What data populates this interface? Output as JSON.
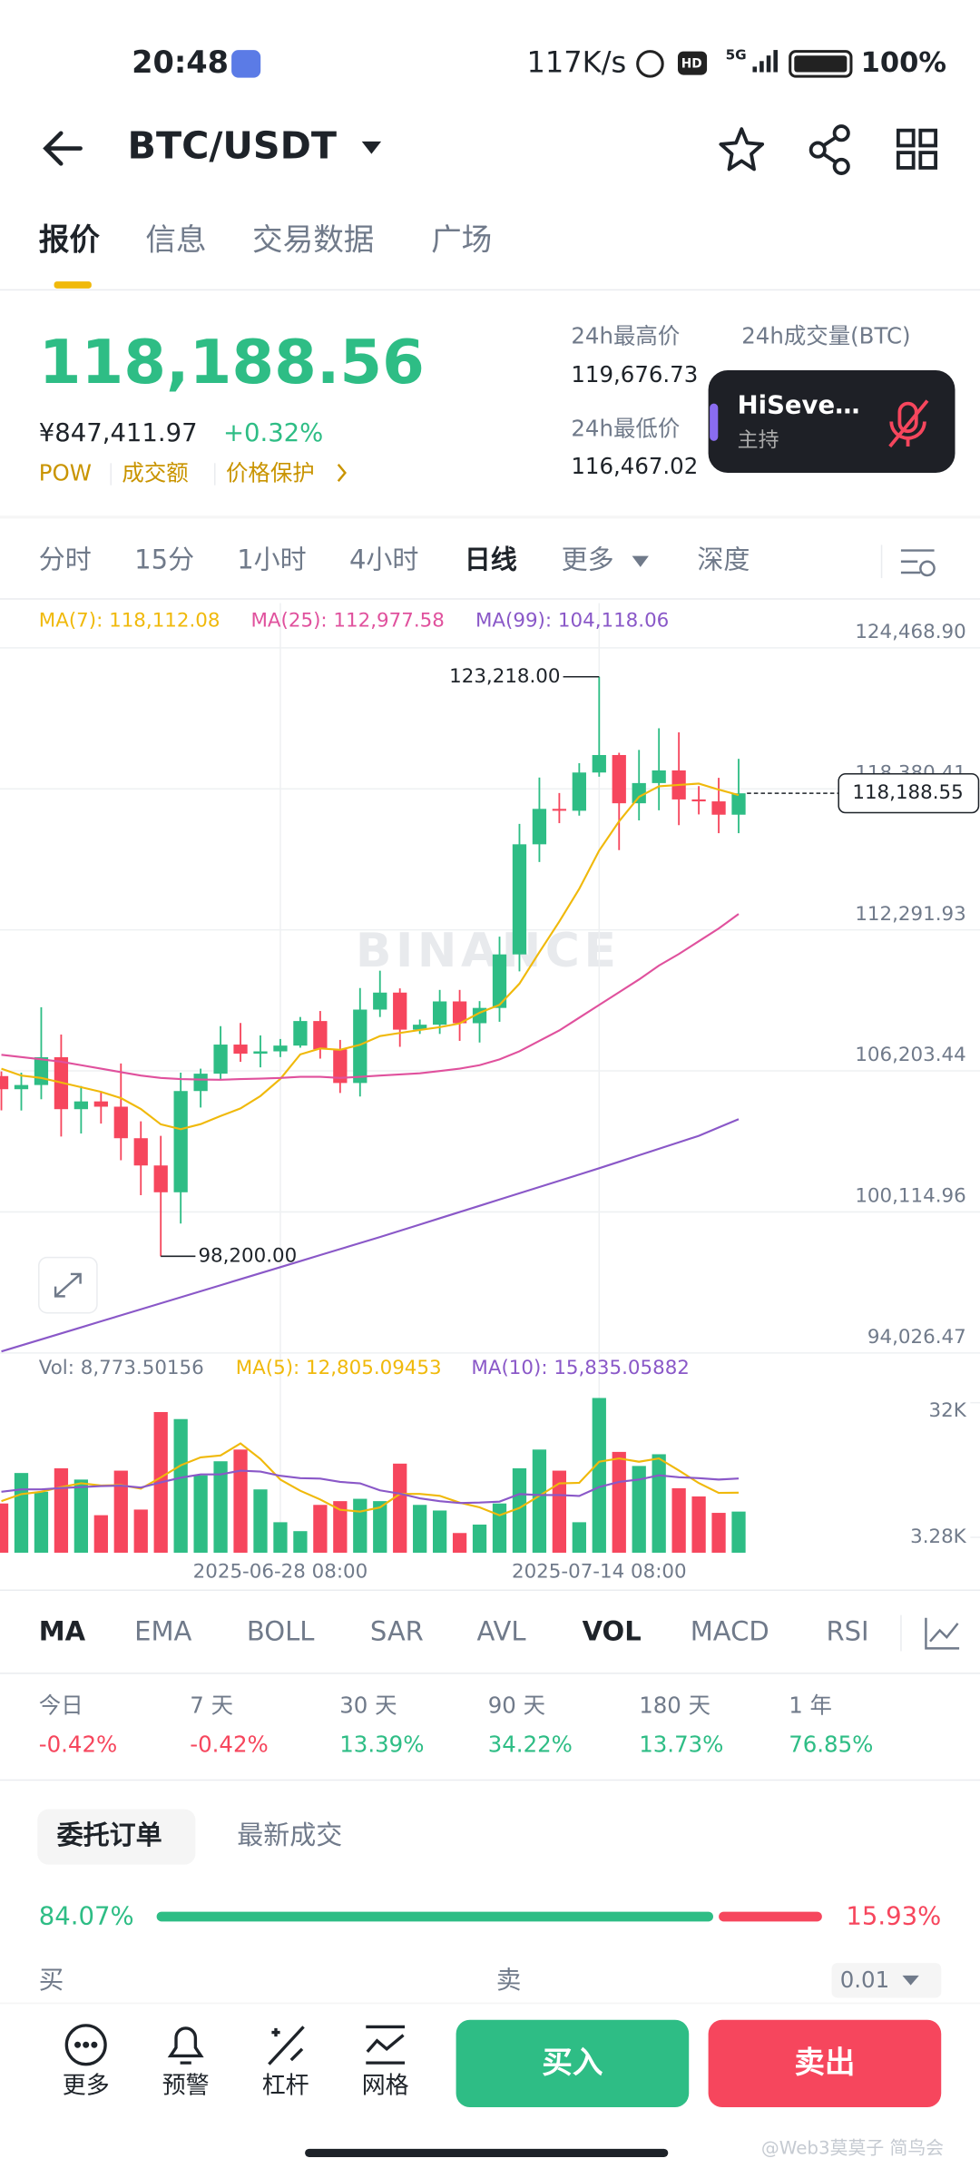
{
  "status_bar": {
    "time": "20:48",
    "speed": "117K/s",
    "network": "5G",
    "hd": "HD",
    "battery": "100%"
  },
  "header": {
    "pair": "BTC/USDT"
  },
  "tabs": [
    "报价",
    "信息",
    "交易数据",
    "广场"
  ],
  "price": {
    "last": "118,188.56",
    "fiat": "¥847,411.97",
    "change": "+0.32%",
    "tags": [
      "POW",
      "成交额",
      "价格保护"
    ]
  },
  "stats": {
    "high_label": "24h最高价",
    "high": "119,676.73",
    "low_label": "24h最低价",
    "low": "116,467.02",
    "volume_label": "24h成交量(BTC)"
  },
  "live_overlay": {
    "name": "HiSeve…",
    "role": "主持"
  },
  "intervals": [
    "分时",
    "15分",
    "1小时",
    "4小时",
    "日线",
    "更多",
    "深度"
  ],
  "watermark": "BINANCE",
  "chart_data": {
    "type": "candlestick",
    "categories": [
      null,
      null,
      null,
      null,
      null,
      null,
      null,
      null,
      null,
      null,
      null,
      null,
      null,
      null,
      "2025-06-28 08:00",
      null,
      null,
      null,
      null,
      null,
      null,
      null,
      null,
      null,
      null,
      null,
      null,
      null,
      null,
      null,
      "2025-07-14 08:00",
      null,
      null,
      null,
      null,
      null,
      null,
      null
    ],
    "open": [
      105979,
      105413,
      105594,
      106794,
      104551,
      104886,
      104658,
      103297,
      102120,
      100963,
      105334,
      106083,
      107340,
      106947,
      107047,
      107296,
      108356,
      107135,
      105681,
      108850,
      109584,
      107984,
      108198,
      109203,
      108262,
      108922,
      111233,
      115987,
      117516,
      117435,
      119086,
      119841,
      117758,
      118630,
      119177,
      117924,
      117840,
      117265
    ],
    "high": [
      106179,
      106128,
      108952,
      107771,
      105550,
      105286,
      106524,
      104024,
      103400,
      106128,
      106300,
      108135,
      108272,
      107735,
      107580,
      108531,
      108789,
      107540,
      109780,
      110529,
      109766,
      108420,
      109700,
      109700,
      109216,
      111999,
      116868,
      118869,
      118200,
      119488,
      123218,
      119940,
      120063,
      120998,
      120820,
      118499,
      118856,
      119676
    ],
    "low": [
      104500,
      104494,
      104979,
      103371,
      103500,
      103929,
      102345,
      100838,
      98200,
      99613,
      104622,
      105800,
      106594,
      106356,
      106800,
      107204,
      106733,
      105250,
      105100,
      108530,
      107245,
      107800,
      107800,
      107500,
      107429,
      108324,
      110500,
      115222,
      116900,
      117224,
      118906,
      115736,
      117017,
      117453,
      116812,
      117277,
      116467,
      116467
    ],
    "close": [
      105413,
      105594,
      106794,
      104551,
      104886,
      104658,
      103297,
      102120,
      100963,
      105334,
      106083,
      107340,
      106947,
      107047,
      107296,
      108356,
      107135,
      105681,
      108850,
      109584,
      107984,
      108198,
      109203,
      108262,
      108922,
      111233,
      115987,
      117516,
      117435,
      119086,
      119841,
      117758,
      118630,
      119177,
      117924,
      117840,
      117265,
      118188.55
    ],
    "up_color": "#2ebd85",
    "down_color": "#f6465d",
    "ylim": [
      93900,
      126400
    ],
    "yticks": [
      {
        "value": 124468.9,
        "label": "124,468.90"
      },
      {
        "value": 118380.41,
        "label": "118,380.41"
      },
      {
        "value": 112291.93,
        "label": "112,291.93"
      },
      {
        "value": 106203.44,
        "label": "106,203.44"
      },
      {
        "value": 100114.96,
        "label": "100,114.96"
      },
      {
        "value": 94026.47,
        "label": "94,026.47"
      }
    ],
    "grid": true,
    "series": [
      {
        "name": "MA(7): 118,112.08",
        "color": "#f0b90b",
        "values": [
          106300,
          106000,
          105900,
          105700,
          105500,
          105300,
          105028,
          104557,
          103896,
          103687,
          103906,
          104256,
          104583,
          105119,
          105859,
          106915,
          107172,
          107115,
          107330,
          107707,
          107841,
          107970,
          108091,
          108252,
          108715,
          109055,
          109970,
          111332,
          112651,
          114063,
          115717,
          116979,
          118036,
          118492,
          118550,
          118608,
          118348,
          118112.08
        ]
      },
      {
        "name": "MA(25): 112,977.58",
        "color": "#e0519d",
        "values": [
          106900,
          106800,
          106700,
          106600,
          106450,
          106300,
          106150,
          106000,
          105900,
          105850,
          105830,
          105820,
          105850,
          105870,
          105900,
          105950,
          105950,
          105900,
          105950,
          106000,
          106050,
          106100,
          106200,
          106300,
          106450,
          106700,
          107050,
          107500,
          107950,
          108500,
          109050,
          109600,
          110150,
          110750,
          111250,
          111800,
          112350,
          112977.58
        ]
      },
      {
        "name": "MA(99): 104,118.06",
        "color": "#8a58c8",
        "values": [
          94090,
          94350,
          94610,
          94870,
          95130,
          95390,
          95650,
          95910,
          96170,
          96430,
          96690,
          96950,
          97210,
          97470,
          97730,
          97990,
          98250,
          98510,
          98770,
          99030,
          99300,
          99570,
          99840,
          100110,
          100380,
          100650,
          100920,
          101190,
          101460,
          101730,
          102000,
          102280,
          102560,
          102840,
          103120,
          103400,
          103760,
          104118.06
        ]
      }
    ],
    "max_label": "123,218.00",
    "min_label": "98,200.00",
    "last_label": "118,188.55",
    "volume": {
      "label": "Vol: 8,773.50156",
      "values": [
        10500,
        17000,
        13000,
        18000,
        15600,
        8000,
        17500,
        9200,
        30000,
        28500,
        16500,
        19500,
        22000,
        13500,
        6500,
        4600,
        10200,
        11000,
        11500,
        11000,
        19000,
        10200,
        9000,
        4200,
        6000,
        10500,
        18000,
        22000,
        17500,
        6500,
        33000,
        21500,
        18500,
        21000,
        13750,
        12000,
        8500,
        8773.50156
      ],
      "ylim": [
        0,
        34000
      ],
      "yticks": [
        {
          "value": 32000,
          "label": "32K"
        },
        {
          "value": 3280,
          "label": "3.28K"
        }
      ],
      "series": [
        {
          "name": "MA(5): 12,805.09453",
          "color": "#f0b90b",
          "values": [
            11000,
            12500,
            13000,
            14000,
            14820,
            14320,
            14420,
            13660,
            16060,
            18640,
            20340,
            20740,
            23300,
            20000,
            15600,
            13220,
            11360,
            9160,
            8760,
            9660,
            12540,
            12540,
            12140,
            10680,
            9680,
            7980,
            9540,
            12140,
            14800,
            14900,
            19400,
            20100,
            19400,
            20100,
            17550,
            14850,
            12750,
            12805.09453
          ]
        },
        {
          "name": "MA(10): 15,835.05882",
          "color": "#8a58c8",
          "values": [
            13000,
            13500,
            13500,
            13800,
            14000,
            14200,
            14300,
            13900,
            15000,
            16000,
            16700,
            16700,
            17500,
            17300,
            16400,
            15900,
            15800,
            15100,
            14800,
            13300,
            12600,
            11600,
            11000,
            10600,
            10700,
            10900,
            12500,
            12300,
            12300,
            12100,
            14000,
            15100,
            15600,
            16500,
            16100,
            15900,
            15600,
            15835.05882
          ]
        }
      ]
    }
  },
  "indicators": [
    "MA",
    "EMA",
    "BOLL",
    "SAR",
    "AVL",
    "VOL",
    "MACD",
    "RSI"
  ],
  "performance": {
    "periods": [
      "今日",
      "7 天",
      "30 天",
      "90 天",
      "180 天",
      "1 年"
    ],
    "changes": [
      "-0.42%",
      "-0.42%",
      "13.39%",
      "34.22%",
      "13.73%",
      "76.85%"
    ]
  },
  "orders": {
    "tabs": [
      "委托订单",
      "最新成交"
    ],
    "buy_ratio": {
      "value": 84.07,
      "label": "84.07%"
    },
    "sell_ratio": {
      "value": 15.93,
      "label": "15.93%"
    },
    "buy": "买",
    "sell": "卖",
    "step": "0.01"
  },
  "bottom_nav": {
    "items": [
      "更多",
      "预警",
      "杠杆",
      "网格"
    ],
    "buy": "买入",
    "sell": "卖出"
  },
  "credit": "@Web3莫莫子 简鸟会"
}
